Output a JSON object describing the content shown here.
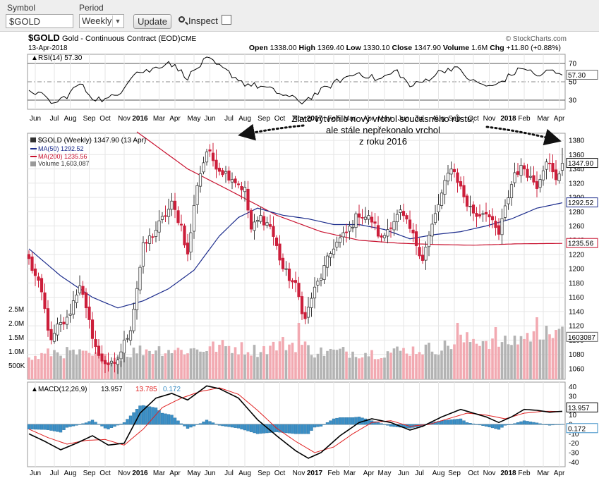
{
  "toolbar": {
    "symbol_label": "Symbol",
    "symbol_value": "$GOLD",
    "period_label": "Period",
    "period_value": "Weekly",
    "update_label": "Update",
    "inspect_label": "Inspect",
    "inspect_checked": false
  },
  "header": {
    "ticker": "$GOLD",
    "description": "Gold - Continuous Contract (EOD)",
    "exchange": "CME",
    "watermark": "© StockCharts.com",
    "date": "13-Apr-2018",
    "ohlc": "Open 1338.00  High 1369.40  Low 1330.10  Close 1347.90  Volume 1.6M  Chg +11.80 (+0.88%)",
    "ohlc_parts": [
      {
        "label": "Open",
        "value": "1338.00"
      },
      {
        "label": "High",
        "value": "1369.40"
      },
      {
        "label": "Low",
        "value": "1330.10"
      },
      {
        "label": "Close",
        "value": "1347.90"
      },
      {
        "label": "Volume",
        "value": "1.6M"
      },
      {
        "label": "Chg",
        "value": "+11.80 (+0.88%)"
      }
    ],
    "change_direction": "up"
  },
  "rsi_panel": {
    "label": "RSI(14) 57.30",
    "current": 57.3,
    "current_label": "57.30",
    "ticks": [
      "70",
      "50",
      "30"
    ]
  },
  "annotation": {
    "lines": [
      "Zlato vytvořilo nový vrchol současného růstu,",
      "ale stále nepřekonalo vrchol",
      "z roku 2016"
    ]
  },
  "price_legend": {
    "title": "$GOLD (Weekly) 1347.90 (13 Apr)",
    "ma50": "MA(50) 1292.52",
    "ma200": "MA(200) 1235.56",
    "volume": "Volume 1,603,087"
  },
  "macd_panel": {
    "label_prefix": "MACD(12,26,9)",
    "macd_value": "13.957",
    "signal_value": "13.785",
    "hist_value": "0.172",
    "ticks": [
      "40",
      "30",
      "20",
      "10",
      "0",
      "-10",
      "-20",
      "-30",
      "-40"
    ],
    "badge_macd": "13.957",
    "badge_hist": "0.172"
  },
  "price_ticks": [
    "1380",
    "1360",
    "1340",
    "1320",
    "1300",
    "1280",
    "1260",
    "1240",
    "1220",
    "1200",
    "1180",
    "1160",
    "1140",
    "1120",
    "1100",
    "1080",
    "1060"
  ],
  "volume_ticks": [
    "2.5M",
    "2.0M",
    "1.5M",
    "1.0M",
    "500K"
  ],
  "price_badges": {
    "close": "1347.90",
    "ma50": "1292.52",
    "ma200": "1235.56",
    "volume": "1603087"
  },
  "x_axis_labels": [
    {
      "text": "Jun",
      "bold": false
    },
    {
      "text": "Jul",
      "bold": false
    },
    {
      "text": "Aug",
      "bold": false
    },
    {
      "text": "Sep",
      "bold": false
    },
    {
      "text": "Oct",
      "bold": false
    },
    {
      "text": "Nov",
      "bold": false
    },
    {
      "text": "2016",
      "bold": true
    },
    {
      "text": "Mar",
      "bold": false
    },
    {
      "text": "Apr",
      "bold": false
    },
    {
      "text": "May",
      "bold": false
    },
    {
      "text": "Jun",
      "bold": false
    },
    {
      "text": "Jul",
      "bold": false
    },
    {
      "text": "Aug",
      "bold": false
    },
    {
      "text": "Sep",
      "bold": false
    },
    {
      "text": "Oct",
      "bold": false
    },
    {
      "text": "Nov",
      "bold": false
    },
    {
      "text": "2017",
      "bold": true
    },
    {
      "text": "Feb",
      "bold": false
    },
    {
      "text": "Mar",
      "bold": false
    },
    {
      "text": "Apr",
      "bold": false
    },
    {
      "text": "May",
      "bold": false
    },
    {
      "text": "Jun",
      "bold": false
    },
    {
      "text": "Jul",
      "bold": false
    },
    {
      "text": "Aug",
      "bold": false
    },
    {
      "text": "Sep",
      "bold": false
    },
    {
      "text": "Oct",
      "bold": false
    },
    {
      "text": "Nov",
      "bold": false
    },
    {
      "text": "2018",
      "bold": true
    },
    {
      "text": "Feb",
      "bold": false
    },
    {
      "text": "Mar",
      "bold": false
    },
    {
      "text": "Apr",
      "bold": false
    }
  ],
  "colors": {
    "up": "#3a3a3a",
    "down": "#cc1f3b",
    "ma50": "#1c2c8c",
    "ma200": "#c8102e",
    "vol_up": "#b3b3b3",
    "vol_down": "#f2a9b1",
    "rsi": "#000000",
    "macd": "#000000",
    "signal": "#e02020",
    "hist": "#3b8fc6",
    "grid": "#e6e6e6"
  },
  "chart_data": {
    "type": "candlestick",
    "interval": "weekly",
    "date_range": [
      "2015-06",
      "2018-04-13"
    ],
    "price_ylim": [
      1045,
      1390
    ],
    "volume_ylim": [
      0,
      3000000
    ],
    "rsi_ylim": [
      20,
      80
    ],
    "macd_ylim": [
      -45,
      45
    ],
    "price_anchors": [
      [
        0,
        1212
      ],
      [
        4,
        1165
      ],
      [
        7,
        1095
      ],
      [
        9,
        1118
      ],
      [
        12,
        1128
      ],
      [
        16,
        1180
      ],
      [
        18,
        1140
      ],
      [
        22,
        1075
      ],
      [
        27,
        1062
      ],
      [
        32,
        1118
      ],
      [
        36,
        1230
      ],
      [
        40,
        1255
      ],
      [
        45,
        1290
      ],
      [
        48,
        1260
      ],
      [
        50,
        1218
      ],
      [
        53,
        1320
      ],
      [
        56,
        1365
      ],
      [
        60,
        1340
      ],
      [
        64,
        1328
      ],
      [
        68,
        1310
      ],
      [
        70,
        1255
      ],
      [
        73,
        1272
      ],
      [
        76,
        1260
      ],
      [
        80,
        1200
      ],
      [
        84,
        1175
      ],
      [
        87,
        1128
      ],
      [
        89,
        1160
      ],
      [
        92,
        1190
      ],
      [
        96,
        1232
      ],
      [
        100,
        1250
      ],
      [
        104,
        1278
      ],
      [
        108,
        1268
      ],
      [
        111,
        1240
      ],
      [
        114,
        1264
      ],
      [
        117,
        1278
      ],
      [
        120,
        1255
      ],
      [
        124,
        1215
      ],
      [
        126,
        1245
      ],
      [
        129,
        1290
      ],
      [
        131,
        1318
      ],
      [
        133,
        1345
      ],
      [
        135,
        1325
      ],
      [
        138,
        1290
      ],
      [
        141,
        1275
      ],
      [
        144,
        1282
      ],
      [
        146,
        1262
      ],
      [
        148,
        1248
      ],
      [
        151,
        1302
      ],
      [
        153,
        1335
      ],
      [
        156,
        1342
      ],
      [
        158,
        1328
      ],
      [
        160,
        1318
      ],
      [
        163,
        1355
      ],
      [
        166,
        1322
      ],
      [
        168,
        1347.9
      ]
    ],
    "ma50_anchors": [
      [
        0,
        1228
      ],
      [
        10,
        1190
      ],
      [
        20,
        1160
      ],
      [
        28,
        1145
      ],
      [
        36,
        1155
      ],
      [
        44,
        1172
      ],
      [
        52,
        1198
      ],
      [
        60,
        1246
      ],
      [
        66,
        1272
      ],
      [
        72,
        1285
      ],
      [
        80,
        1275
      ],
      [
        88,
        1270
      ],
      [
        96,
        1262
      ],
      [
        104,
        1262
      ],
      [
        112,
        1255
      ],
      [
        120,
        1242
      ],
      [
        128,
        1248
      ],
      [
        136,
        1252
      ],
      [
        144,
        1260
      ],
      [
        152,
        1270
      ],
      [
        160,
        1285
      ],
      [
        168,
        1292.52
      ]
    ],
    "ma200_anchors": [
      [
        34,
        1392
      ],
      [
        50,
        1340
      ],
      [
        64,
        1308
      ],
      [
        78,
        1275
      ],
      [
        92,
        1252
      ],
      [
        104,
        1240
      ],
      [
        116,
        1236
      ],
      [
        128,
        1234
      ],
      [
        140,
        1233
      ],
      [
        154,
        1235
      ],
      [
        168,
        1235.56
      ]
    ],
    "rsi_anchors": [
      [
        0,
        42
      ],
      [
        4,
        35
      ],
      [
        8,
        26
      ],
      [
        12,
        35
      ],
      [
        16,
        48
      ],
      [
        20,
        33
      ],
      [
        24,
        30
      ],
      [
        28,
        36
      ],
      [
        33,
        60
      ],
      [
        38,
        62
      ],
      [
        44,
        72
      ],
      [
        50,
        55
      ],
      [
        56,
        75
      ],
      [
        62,
        62
      ],
      [
        68,
        48
      ],
      [
        74,
        44
      ],
      [
        80,
        36
      ],
      [
        86,
        28
      ],
      [
        92,
        40
      ],
      [
        98,
        52
      ],
      [
        104,
        60
      ],
      [
        110,
        52
      ],
      [
        116,
        62
      ],
      [
        120,
        45
      ],
      [
        124,
        50
      ],
      [
        130,
        62
      ],
      [
        134,
        66
      ],
      [
        140,
        50
      ],
      [
        146,
        44
      ],
      [
        152,
        58
      ],
      [
        156,
        66
      ],
      [
        160,
        56
      ],
      [
        164,
        62
      ],
      [
        168,
        57.3
      ]
    ],
    "macd_anchors": [
      [
        0,
        -10
      ],
      [
        5,
        -18
      ],
      [
        10,
        -27
      ],
      [
        15,
        -20
      ],
      [
        20,
        -12
      ],
      [
        25,
        -22
      ],
      [
        30,
        -20
      ],
      [
        35,
        12
      ],
      [
        40,
        28
      ],
      [
        45,
        33
      ],
      [
        50,
        26
      ],
      [
        56,
        41
      ],
      [
        60,
        38
      ],
      [
        66,
        28
      ],
      [
        72,
        5
      ],
      [
        78,
        -12
      ],
      [
        84,
        -28
      ],
      [
        88,
        -36
      ],
      [
        92,
        -30
      ],
      [
        98,
        -12
      ],
      [
        104,
        2
      ],
      [
        108,
        6
      ],
      [
        114,
        2
      ],
      [
        120,
        -6
      ],
      [
        124,
        -2
      ],
      [
        130,
        8
      ],
      [
        136,
        16
      ],
      [
        140,
        12
      ],
      [
        144,
        8
      ],
      [
        148,
        2
      ],
      [
        152,
        8
      ],
      [
        156,
        16
      ],
      [
        160,
        15
      ],
      [
        164,
        13
      ],
      [
        168,
        13.957
      ]
    ],
    "signal_anchors": [
      [
        0,
        -5
      ],
      [
        6,
        -14
      ],
      [
        12,
        -21
      ],
      [
        18,
        -17
      ],
      [
        24,
        -16
      ],
      [
        30,
        -22
      ],
      [
        36,
        -5
      ],
      [
        42,
        18
      ],
      [
        48,
        28
      ],
      [
        54,
        35
      ],
      [
        60,
        39
      ],
      [
        66,
        32
      ],
      [
        72,
        15
      ],
      [
        78,
        -4
      ],
      [
        84,
        -18
      ],
      [
        90,
        -30
      ],
      [
        96,
        -24
      ],
      [
        102,
        -10
      ],
      [
        108,
        2
      ],
      [
        114,
        4
      ],
      [
        120,
        -2
      ],
      [
        126,
        0
      ],
      [
        132,
        6
      ],
      [
        138,
        12
      ],
      [
        144,
        10
      ],
      [
        150,
        6
      ],
      [
        156,
        12
      ],
      [
        162,
        14
      ],
      [
        168,
        13.785
      ]
    ],
    "volume_anchors": [
      [
        0,
        0.72
      ],
      [
        8,
        1.0
      ],
      [
        14,
        0.95
      ],
      [
        20,
        0.85
      ],
      [
        26,
        0.75
      ],
      [
        34,
        1.05
      ],
      [
        40,
        1.1
      ],
      [
        48,
        1.05
      ],
      [
        54,
        1.1
      ],
      [
        60,
        1.2
      ],
      [
        66,
        1.15
      ],
      [
        72,
        1.05
      ],
      [
        80,
        1.3
      ],
      [
        86,
        1.25
      ],
      [
        90,
        1.0
      ],
      [
        100,
        1.0
      ],
      [
        110,
        0.95
      ],
      [
        118,
        1.05
      ],
      [
        124,
        1.1
      ],
      [
        130,
        1.15
      ],
      [
        136,
        1.4
      ],
      [
        142,
        1.45
      ],
      [
        150,
        1.3
      ],
      [
        156,
        1.55
      ],
      [
        162,
        1.7
      ],
      [
        168,
        1.603
      ]
    ],
    "volume_spikes": [
      [
        85,
        2.0
      ],
      [
        135,
        2.0
      ],
      [
        147,
        1.85
      ],
      [
        160,
        2.2
      ],
      [
        163,
        1.9
      ],
      [
        166,
        1.75
      ]
    ],
    "last_close": 1347.9
  }
}
